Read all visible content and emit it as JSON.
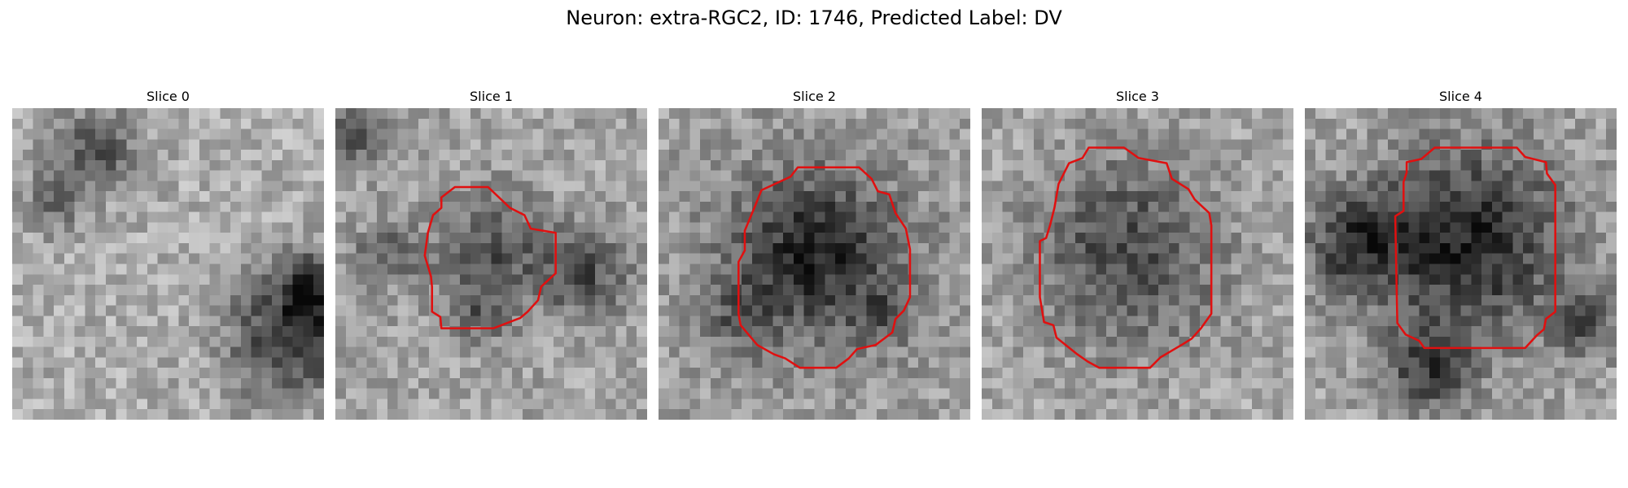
{
  "figure": {
    "title": "Neuron: extra-RGC2, ID: 1746, Predicted Label: DV"
  },
  "panels": [
    {
      "title": "Slice 0",
      "has_contour": false
    },
    {
      "title": "Slice 1",
      "has_contour": true
    },
    {
      "title": "Slice 2",
      "has_contour": true
    },
    {
      "title": "Slice 3",
      "has_contour": true
    },
    {
      "title": "Slice 4",
      "has_contour": true
    }
  ],
  "colors": {
    "contour": "#e01010",
    "background": "#ffffff"
  }
}
